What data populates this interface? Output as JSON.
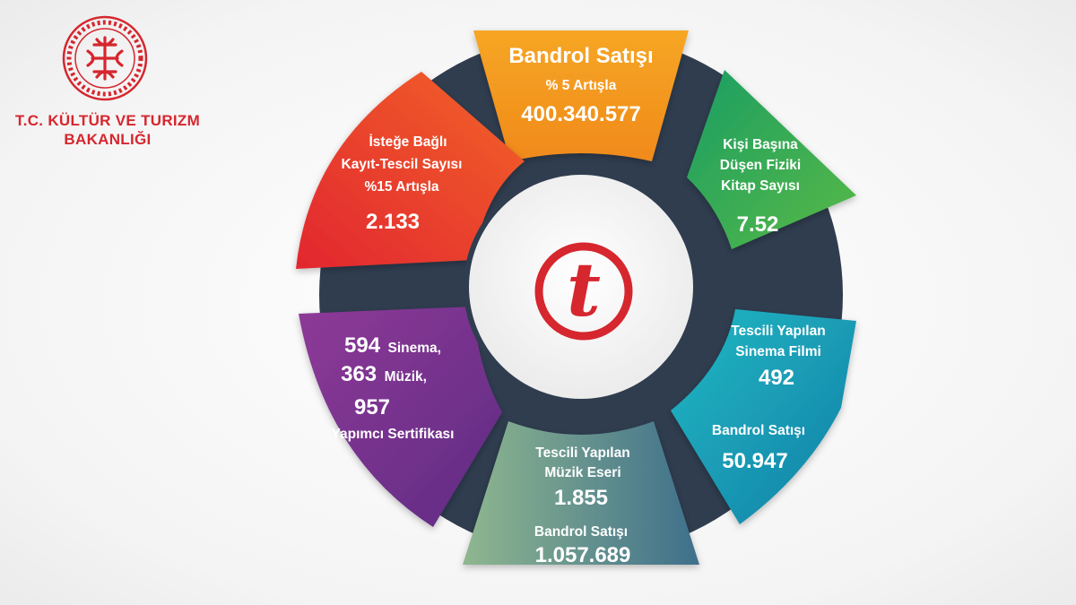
{
  "ministry": {
    "name_line1": "T.C. KÜLTÜR VE TURIZM",
    "name_line2": "BAKANLIĞI",
    "brand_color": "#d6262e"
  },
  "center_logo": {
    "glyph": "t",
    "color": "#d6262e"
  },
  "segments": {
    "top": {
      "title": "Bandrol Satışı",
      "subtitle": "% 5 Artışla",
      "value": "400.340.577",
      "color": "#f39c1f"
    },
    "upper_right": {
      "line1": "Kişi Başına",
      "line2": "Düşen Fiziki",
      "line3": "Kitap Sayısı",
      "value": "7.52",
      "color": "#27a35a"
    },
    "lower_right": {
      "line1": "Tescili Yapılan",
      "line2": "Sinema  Filmi",
      "value1": "492",
      "line3": "Bandrol Satışı",
      "value2": "50.947",
      "color": "#1b9bb8"
    },
    "bottom": {
      "line1": "Tescili Yapılan",
      "line2": "Müzik Eseri",
      "value1": "1.855",
      "line3": "Bandrol Satışı",
      "value2": "1.057.689",
      "color": "#6f9a9a"
    },
    "lower_left": {
      "num1": "594",
      "word1": "Sinema,",
      "num2": "363",
      "word2": "Müzik,",
      "num3": "957",
      "line4": "Yapımcı Sertifikası",
      "color": "#7b2c8d"
    },
    "upper_left": {
      "line1": "İsteğe Bağlı",
      "line2": "Kayıt-Tescil Sayısı",
      "line3": "%15 Artışla",
      "value": "2.133",
      "color": "#e8352b"
    }
  }
}
